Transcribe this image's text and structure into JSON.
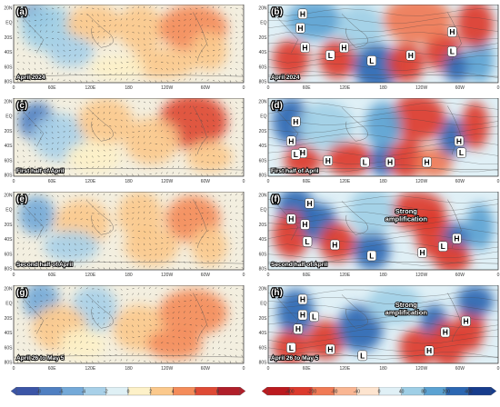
{
  "axes": {
    "left_x_ticks": [
      "0",
      "60E",
      "120E",
      "180",
      "120W",
      "60W",
      "0"
    ],
    "left_y_ticks": [
      "20N",
      "EQ",
      "20S",
      "40S",
      "60S",
      "80S"
    ],
    "right_x_ticks": [
      "0",
      "60E",
      "120E",
      "180",
      "120W",
      "60W",
      "0"
    ],
    "right_y_ticks": [
      "20N",
      "EQ",
      "20S",
      "40S",
      "60S",
      "80S"
    ]
  },
  "panels": [
    {
      "id": "a",
      "label": "(a)",
      "title": "April 2024",
      "side": "left"
    },
    {
      "id": "b",
      "label": "(b)",
      "title": "April 2024",
      "side": "right",
      "markers": [
        "H",
        "H",
        "H",
        "L",
        "H",
        "L",
        "H",
        "L",
        "H"
      ]
    },
    {
      "id": "c",
      "label": "(c)",
      "title": "First half of April",
      "side": "left"
    },
    {
      "id": "d",
      "label": "(d)",
      "title": "First half of April",
      "side": "right",
      "markers": [
        "H",
        "H",
        "H",
        "L",
        "H",
        "L",
        "H",
        "H",
        "H",
        "L"
      ]
    },
    {
      "id": "e",
      "label": "(e)",
      "title": "Second half of April",
      "side": "left"
    },
    {
      "id": "f",
      "label": "(f)",
      "title": "Second half of April",
      "side": "right",
      "markers": [
        "H",
        "H",
        "H",
        "L",
        "H",
        "H",
        "L",
        "H",
        "L"
      ],
      "note": "Strong\namplification"
    },
    {
      "id": "g",
      "label": "(g)",
      "title": "April 26 to May 5",
      "side": "left"
    },
    {
      "id": "h",
      "label": "(h)",
      "title": "April 26 to May 5",
      "side": "right",
      "markers": [
        "H",
        "H",
        "H",
        "L",
        "H",
        "H",
        "L",
        "H",
        "L",
        "H"
      ],
      "note": "Strong\namplification"
    }
  ],
  "colorbar_left": {
    "labels": [
      "-8",
      "-6",
      "-4",
      "-2",
      "0",
      "2",
      "4",
      "6",
      "8"
    ],
    "colors": [
      "#3b55a6",
      "#4f7fc1",
      "#74a9d8",
      "#a8d0e8",
      "#dff0f5",
      "#fdf1c8",
      "#fbc98c",
      "#f48c5a",
      "#de4a35",
      "#b01f2a"
    ]
  },
  "colorbar_right": {
    "labels": [
      "-400",
      "-200",
      "-80",
      "-40",
      "0",
      "40",
      "80",
      "200",
      "400"
    ],
    "colors": [
      "#bb1a1f",
      "#dc3a2d",
      "#f07a55",
      "#f9b693",
      "#fde4cf",
      "#e0f0f6",
      "#9fcfe6",
      "#5ba2d2",
      "#2c67b2",
      "#173c8c"
    ]
  },
  "colors": {
    "warm": "#e8765a",
    "cool": "#5f9fd6",
    "neutral": "#f3efe0",
    "grid": "#777777"
  }
}
